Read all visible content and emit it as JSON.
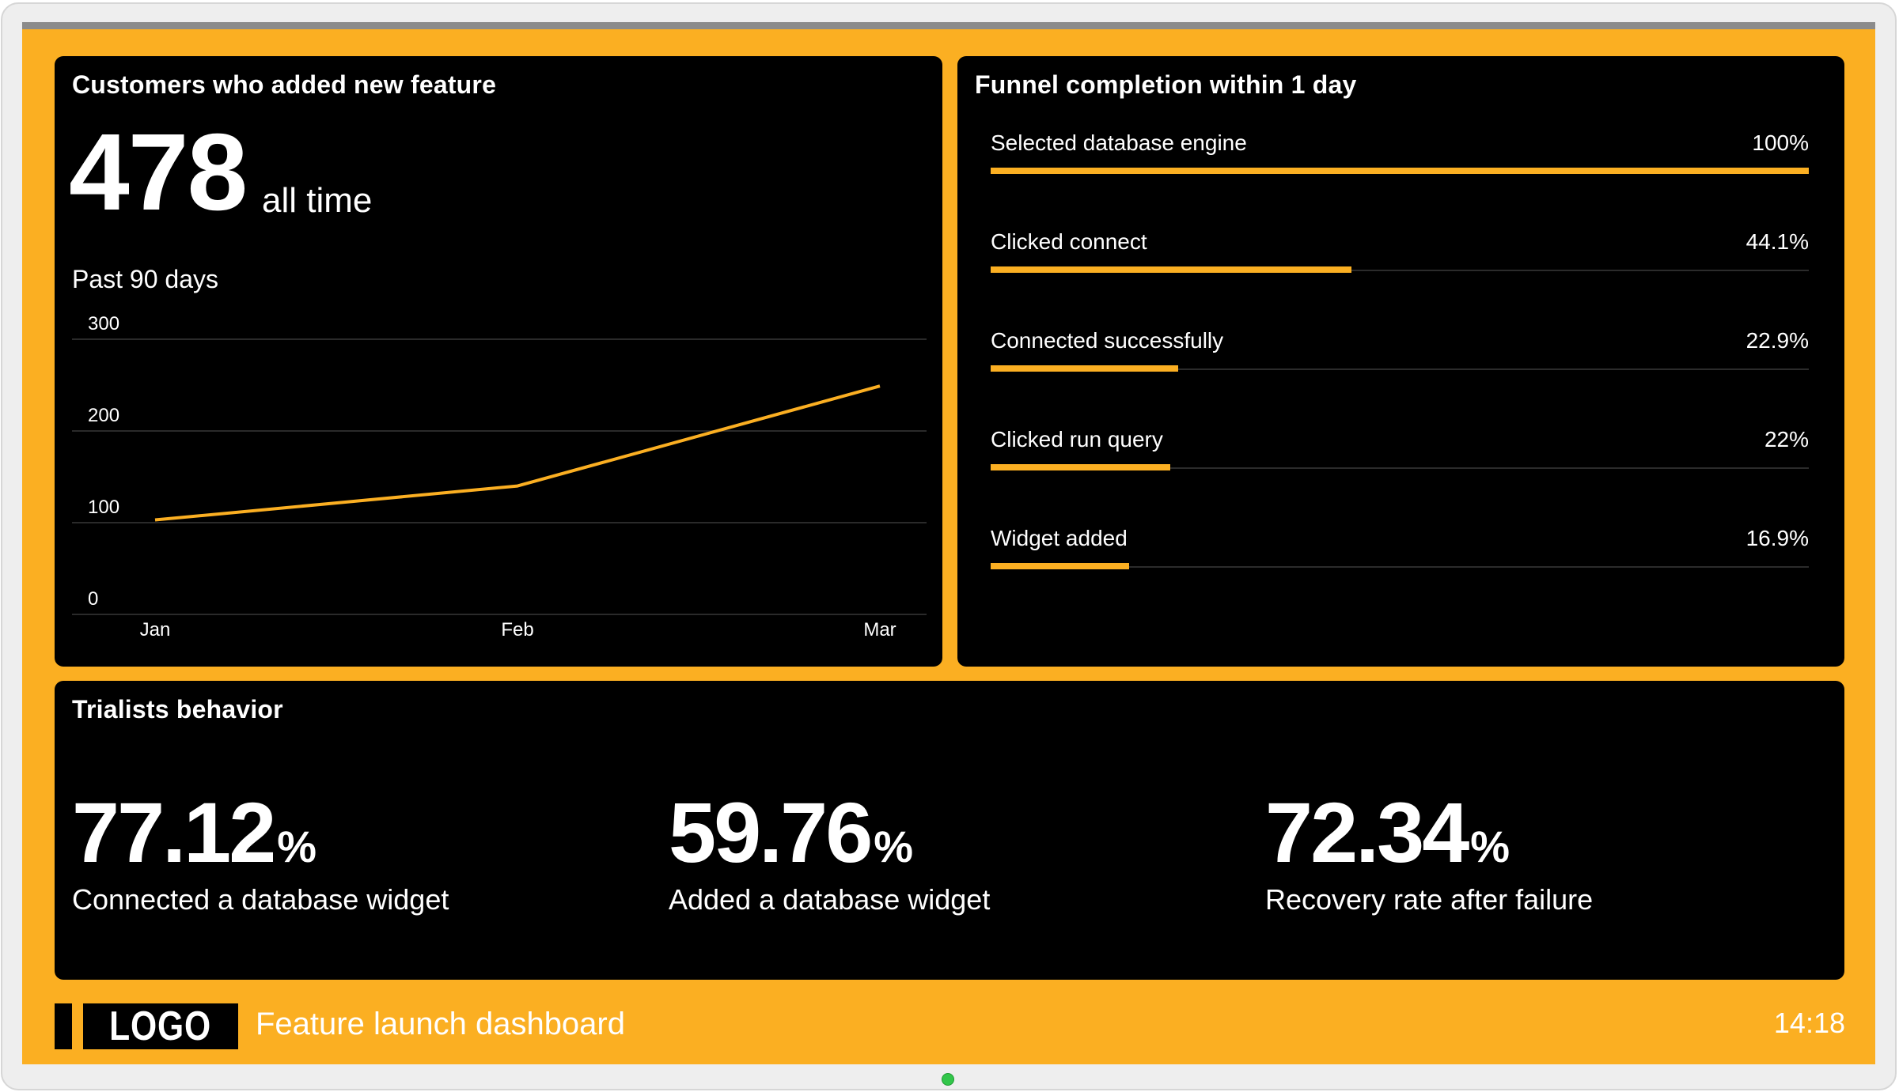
{
  "colors": {
    "accent": "#fbaf22",
    "panel": "#000000",
    "text": "#ffffff"
  },
  "customers_panel": {
    "title": "Customers who added new feature",
    "total_value": "478",
    "total_suffix": "all time",
    "subtitle": "Past 90 days"
  },
  "chart_data": {
    "type": "line",
    "title": "Past 90 days",
    "categories": [
      "Jan",
      "Feb",
      "Mar"
    ],
    "series": [
      {
        "name": "Customers",
        "values": [
          103,
          140,
          249
        ]
      }
    ],
    "yticks": [
      0,
      100,
      200,
      300
    ],
    "ylim": [
      0,
      300
    ],
    "xlabel": "",
    "ylabel": "",
    "grid": true
  },
  "funnel_panel": {
    "title": "Funnel completion within 1 day",
    "steps": [
      {
        "label": "Selected database engine",
        "percent_text": "100%",
        "value": 100
      },
      {
        "label": "Clicked connect",
        "percent_text": "44.1%",
        "value": 44.1
      },
      {
        "label": "Connected successfully",
        "percent_text": "22.9%",
        "value": 22.9
      },
      {
        "label": "Clicked run query",
        "percent_text": "22%",
        "value": 22
      },
      {
        "label": "Widget added",
        "percent_text": "16.9%",
        "value": 16.9
      }
    ]
  },
  "trialists_panel": {
    "title": "Trialists behavior",
    "metrics": [
      {
        "value": "77.12",
        "unit": "%",
        "label": "Connected a database widget"
      },
      {
        "value": "59.76",
        "unit": "%",
        "label": "Added a database widget"
      },
      {
        "value": "72.34",
        "unit": "%",
        "label": "Recovery rate after failure"
      }
    ]
  },
  "footer": {
    "logo_text": "LOGO",
    "dashboard_title": "Feature launch dashboard",
    "clock": "14:18"
  }
}
